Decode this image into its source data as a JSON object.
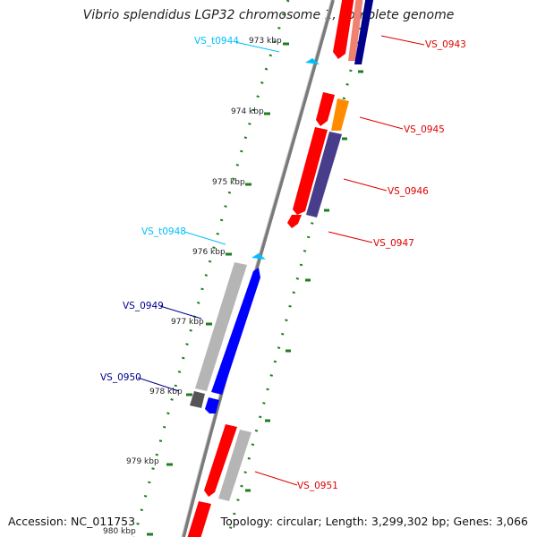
{
  "title": "Vibrio splendidus LGP32 chromosome 1, complete genome",
  "accession_text": "Accession: NC_011753",
  "topology_text": "Topology: circular; Length: 3,299,302 bp; Genes: 3,066",
  "colors": {
    "backbone": "#808080",
    "tick": "#1e7d1e",
    "red": "#ff0000",
    "blue": "#0000ff",
    "navy": "#00008b",
    "orange": "#ff8c00",
    "slate": "#483d8b",
    "gray": "#a9a9a9",
    "dark_gray": "#555555",
    "salmon": "#f08070",
    "cyan": "#00bfff"
  },
  "scale_labels": [
    "973 kbp",
    "974 kbp",
    "975 kbp",
    "976 kbp",
    "977 kbp",
    "978 kbp",
    "979 kbp",
    "980 kbp"
  ],
  "gene_labels": [
    {
      "text": "VS_t0944",
      "color": "#00bfff"
    },
    {
      "text": "VS_0943",
      "color": "#e00000"
    },
    {
      "text": "VS_0945",
      "color": "#e00000"
    },
    {
      "text": "VS_0946",
      "color": "#e00000"
    },
    {
      "text": "VS_0947",
      "color": "#e00000"
    },
    {
      "text": "VS_t0948",
      "color": "#00bfff"
    },
    {
      "text": "VS_0949",
      "color": "#00008b"
    },
    {
      "text": "VS_0950",
      "color": "#00008b"
    },
    {
      "text": "VS_0951",
      "color": "#e00000"
    }
  ]
}
